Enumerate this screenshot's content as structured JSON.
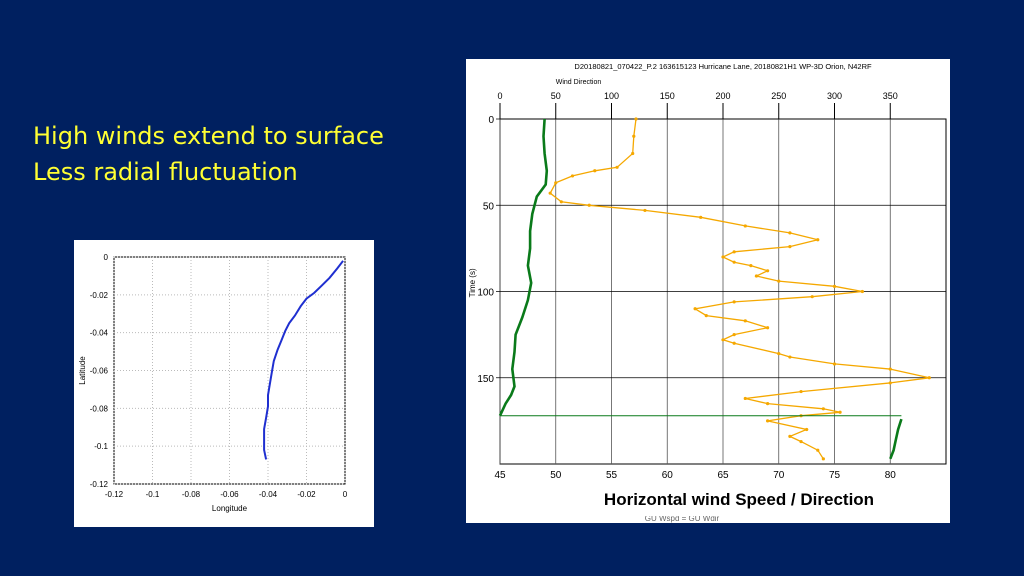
{
  "slide": {
    "bullets": [
      "High winds extend to surface",
      "Less radial fluctuation"
    ],
    "caption": "Horizontal wind Speed / Direction"
  },
  "colors": {
    "background": "#002060",
    "bullet_text": "#ffff33",
    "track_line": "#1f2fd0",
    "speed_series": "#f5a800",
    "direction_series": "#0a7a1a"
  },
  "chart_data": [
    {
      "type": "line",
      "xlabel": "Longitude",
      "ylabel": "Latitude",
      "xlim": [
        -0.12,
        0
      ],
      "ylim": [
        -0.12,
        0
      ],
      "xticks": [
        "-0.12",
        "-0.1",
        "-0.08",
        "-0.06",
        "-0.04",
        "-0.02",
        "0"
      ],
      "yticks": [
        "0",
        "-0.02",
        "-0.04",
        "-0.06",
        "-0.08",
        "-0.1",
        "-0.12"
      ],
      "grid": true,
      "series": [
        {
          "points": [
            [
              -0.001,
              -0.002
            ],
            [
              -0.004,
              -0.006
            ],
            [
              -0.008,
              -0.011
            ],
            [
              -0.012,
              -0.015
            ],
            [
              -0.016,
              -0.019
            ],
            [
              -0.02,
              -0.022
            ],
            [
              -0.023,
              -0.026
            ],
            [
              -0.026,
              -0.031
            ],
            [
              -0.029,
              -0.035
            ],
            [
              -0.031,
              -0.039
            ],
            [
              -0.033,
              -0.044
            ],
            [
              -0.035,
              -0.049
            ],
            [
              -0.037,
              -0.055
            ],
            [
              -0.038,
              -0.061
            ],
            [
              -0.039,
              -0.067
            ],
            [
              -0.04,
              -0.073
            ],
            [
              -0.04,
              -0.079
            ],
            [
              -0.041,
              -0.085
            ],
            [
              -0.042,
              -0.091
            ],
            [
              -0.042,
              -0.097
            ],
            [
              -0.042,
              -0.102
            ],
            [
              -0.041,
              -0.107
            ]
          ]
        }
      ]
    },
    {
      "type": "line",
      "title": "D20180821_070422_P.2 163615123 Hurricane Lane, 20180821H1 WP-3D Orion, N42RF",
      "top_axis_label": "Wind Direction",
      "ylabel": "Time (s)",
      "top_xlim": [
        0,
        400
      ],
      "bottom_xlim": [
        45,
        85
      ],
      "ylim": [
        0,
        200
      ],
      "top_ticks": [
        "0",
        "50",
        "100",
        "150",
        "200",
        "250",
        "300",
        "350"
      ],
      "bottom_ticks": [
        "45",
        "50",
        "55",
        "60",
        "65",
        "70",
        "75",
        "80"
      ],
      "y_ticks": [
        "0",
        "50",
        "100",
        "150"
      ],
      "legend": [
        "GU Wspd",
        "GU Wdir"
      ],
      "series": [
        {
          "name": "GU Wspd",
          "axis": "bottom",
          "points": [
            [
              57.2,
              0
            ],
            [
              57,
              10
            ],
            [
              56.9,
              20
            ],
            [
              55.5,
              28
            ],
            [
              53.5,
              30
            ],
            [
              51.5,
              33
            ],
            [
              50,
              37
            ],
            [
              49.5,
              43
            ],
            [
              50.5,
              48
            ],
            [
              53,
              50
            ],
            [
              58,
              53
            ],
            [
              63,
              57
            ],
            [
              67,
              62
            ],
            [
              71,
              66
            ],
            [
              73.5,
              70
            ],
            [
              71,
              74
            ],
            [
              66,
              77
            ],
            [
              65,
              80
            ],
            [
              66,
              83
            ],
            [
              67.5,
              85
            ],
            [
              69,
              88
            ],
            [
              68,
              91
            ],
            [
              70,
              94
            ],
            [
              75,
              97
            ],
            [
              77.5,
              100
            ],
            [
              73,
              103
            ],
            [
              66,
              106
            ],
            [
              62.5,
              110
            ],
            [
              63.5,
              114
            ],
            [
              67,
              117
            ],
            [
              69,
              121
            ],
            [
              66,
              125
            ],
            [
              65,
              128
            ],
            [
              66,
              130
            ],
            [
              70,
              136
            ],
            [
              71,
              138
            ],
            [
              75,
              142
            ],
            [
              80,
              145
            ],
            [
              83.5,
              150
            ],
            [
              80,
              153
            ],
            [
              72,
              158
            ],
            [
              67,
              162
            ],
            [
              69,
              165
            ],
            [
              74,
              168
            ],
            [
              75.5,
              170
            ],
            [
              72,
              172
            ],
            [
              69,
              175
            ],
            [
              72.5,
              180
            ],
            [
              71,
              184
            ],
            [
              72,
              187
            ],
            [
              73.5,
              192
            ],
            [
              74,
              197
            ]
          ]
        },
        {
          "name": "GU Wdir",
          "axis": "top",
          "points": [
            [
              40,
              0
            ],
            [
              39,
              10
            ],
            [
              40,
              20
            ],
            [
              42,
              30
            ],
            [
              41,
              38
            ],
            [
              33,
              45
            ],
            [
              29,
              55
            ],
            [
              27,
              65
            ],
            [
              27,
              75
            ],
            [
              25,
              85
            ],
            [
              28,
              95
            ],
            [
              25,
              105
            ],
            [
              20,
              115
            ],
            [
              14,
              125
            ],
            [
              13,
              135
            ],
            [
              11,
              145
            ],
            [
              13,
              155
            ],
            [
              10,
              160
            ],
            [
              5,
              165
            ],
            [
              0,
              172
            ],
            [
              360,
              174
            ],
            [
              357,
              180
            ],
            [
              355,
              186
            ],
            [
              353,
              192
            ],
            [
              350,
              197
            ]
          ]
        }
      ]
    }
  ]
}
